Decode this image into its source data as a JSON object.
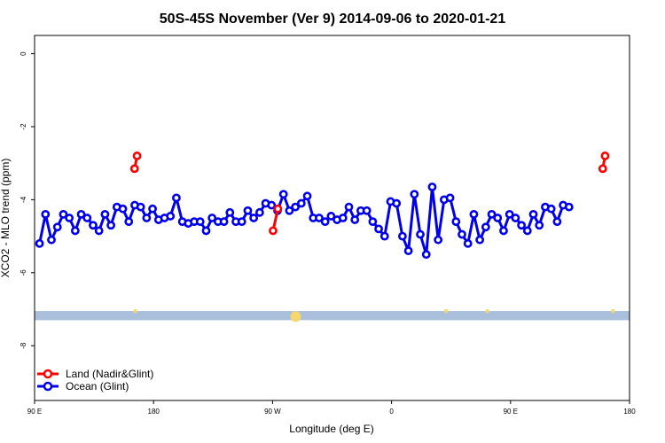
{
  "chart_data": {
    "type": "line",
    "title": "50S-45S November (Ver 9)   2014-09-06 to 2020-01-21",
    "xlabel": "Longitude (deg E)",
    "ylabel": "XCO2 - MLO trend (ppm)",
    "xlim": [
      90,
      450
    ],
    "ylim": [
      -9.5,
      0.5
    ],
    "x_ticks": [
      {
        "value": 90,
        "label": "90 E"
      },
      {
        "value": 162,
        "label": "180"
      },
      {
        "value": 234,
        "label": "90 W"
      },
      {
        "value": 306,
        "label": "0"
      },
      {
        "value": 378,
        "label": "90 E"
      },
      {
        "value": 450,
        "label": "180"
      }
    ],
    "y_ticks": [
      {
        "value": 0,
        "label": "0"
      },
      {
        "value": -2,
        "label": "-2"
      },
      {
        "value": -4,
        "label": "-4"
      },
      {
        "value": -6,
        "label": "-6"
      },
      {
        "value": -8,
        "label": "-8"
      }
    ],
    "band": {
      "y_low": -7.3,
      "y_high": -7.05,
      "color": "#a9bfdc"
    },
    "band_markers": [
      {
        "x": 151,
        "color": "#f5d76e"
      },
      {
        "x": 248,
        "color": "#f5d76e"
      },
      {
        "x": 339,
        "color": "#f5d76e"
      },
      {
        "x": 364,
        "color": "#f5d76e"
      },
      {
        "x": 440,
        "color": "#f5d76e"
      }
    ],
    "legend": {
      "position": "bottom-left"
    },
    "series": [
      {
        "name": "Ocean (Glint)",
        "color": "#0000ee",
        "segments": [
          [
            [
              93,
              -5.2
            ],
            [
              96.6,
              -4.4
            ],
            [
              100.2,
              -5.1
            ],
            [
              103.8,
              -4.75
            ],
            [
              107.4,
              -4.4
            ],
            [
              111,
              -4.5
            ],
            [
              114.6,
              -4.85
            ],
            [
              118.2,
              -4.4
            ],
            [
              121.8,
              -4.5
            ],
            [
              125.4,
              -4.7
            ],
            [
              129,
              -4.85
            ],
            [
              132.6,
              -4.4
            ],
            [
              136.2,
              -4.7
            ],
            [
              139.8,
              -4.2
            ],
            [
              143.4,
              -4.25
            ],
            [
              147,
              -4.6
            ],
            [
              150.6,
              -4.15
            ],
            [
              154.2,
              -4.2
            ],
            [
              157.8,
              -4.5
            ],
            [
              161.4,
              -4.25
            ],
            [
              165,
              -4.55
            ],
            [
              168.6,
              -4.5
            ],
            [
              172.2,
              -4.45
            ],
            [
              175.8,
              -3.95
            ],
            [
              179.4,
              -4.6
            ],
            [
              183,
              -4.65
            ],
            [
              186.6,
              -4.6
            ],
            [
              190.2,
              -4.6
            ],
            [
              193.8,
              -4.85
            ],
            [
              197.4,
              -4.5
            ],
            [
              201,
              -4.6
            ],
            [
              204.6,
              -4.6
            ],
            [
              208.2,
              -4.35
            ],
            [
              211.8,
              -4.6
            ],
            [
              215.4,
              -4.6
            ],
            [
              219,
              -4.3
            ],
            [
              222.6,
              -4.5
            ],
            [
              226.2,
              -4.35
            ],
            [
              229.8,
              -4.1
            ],
            [
              233.4,
              -4.15
            ],
            [
              237,
              -4.3
            ],
            [
              240.6,
              -3.85
            ],
            [
              244.2,
              -4.3
            ],
            [
              247.8,
              -4.2
            ],
            [
              251.4,
              -4.1
            ],
            [
              255,
              -3.9
            ],
            [
              258.6,
              -4.5
            ],
            [
              262.2,
              -4.5
            ],
            [
              265.8,
              -4.6
            ],
            [
              269.4,
              -4.45
            ],
            [
              273,
              -4.55
            ],
            [
              276.6,
              -4.5
            ],
            [
              280.2,
              -4.2
            ],
            [
              283.8,
              -4.55
            ],
            [
              287.4,
              -4.3
            ],
            [
              291,
              -4.3
            ],
            [
              294.6,
              -4.6
            ],
            [
              298.2,
              -4.8
            ],
            [
              301.8,
              -5.0
            ],
            [
              305.4,
              -4.05
            ],
            [
              309,
              -4.1
            ],
            [
              312.6,
              -5.0
            ],
            [
              316.2,
              -5.4
            ],
            [
              319.8,
              -3.85
            ],
            [
              323.4,
              -4.95
            ],
            [
              327,
              -5.5
            ],
            [
              330.6,
              -3.65
            ],
            [
              334.2,
              -5.1
            ],
            [
              337.8,
              -4.0
            ],
            [
              341.4,
              -3.95
            ],
            [
              345,
              -4.6
            ],
            [
              348.6,
              -4.95
            ],
            [
              352.2,
              -5.2
            ],
            [
              355.8,
              -4.4
            ],
            [
              359.4,
              -5.1
            ],
            [
              363,
              -4.75
            ],
            [
              366.6,
              -4.4
            ],
            [
              370.2,
              -4.5
            ],
            [
              373.8,
              -4.85
            ],
            [
              377.4,
              -4.4
            ],
            [
              381,
              -4.5
            ],
            [
              384.6,
              -4.7
            ],
            [
              388.2,
              -4.85
            ],
            [
              391.8,
              -4.4
            ],
            [
              395.4,
              -4.7
            ],
            [
              399,
              -4.2
            ],
            [
              402.6,
              -4.25
            ],
            [
              406.2,
              -4.6
            ],
            [
              409.8,
              -4.15
            ],
            [
              413.4,
              -4.2
            ]
          ]
        ]
      },
      {
        "name": "Land (Nadir&Glint)",
        "color": "#ff0000",
        "segments": [
          [
            [
              150.5,
              -3.15
            ],
            [
              152.0,
              -2.8
            ]
          ],
          [
            [
              234.3,
              -4.85
            ],
            [
              237.2,
              -4.25
            ]
          ],
          [
            [
              433.8,
              -3.15
            ],
            [
              435.2,
              -2.8
            ]
          ]
        ]
      }
    ]
  }
}
